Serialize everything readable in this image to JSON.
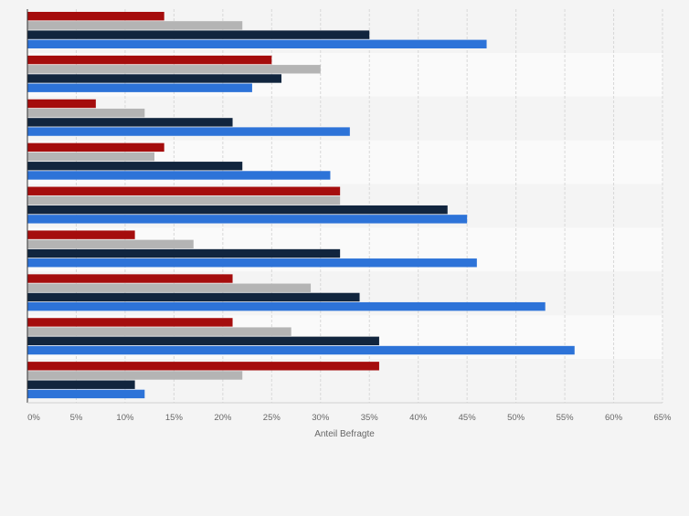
{
  "chart_data": {
    "type": "bar",
    "orientation": "horizontal",
    "title": "",
    "xlabel": "Anteil Befragte",
    "ylabel": "",
    "xlim": [
      0,
      65
    ],
    "x_ticks": [
      "0%",
      "5%",
      "10%",
      "15%",
      "20%",
      "25%",
      "30%",
      "35%",
      "40%",
      "45%",
      "50%",
      "55%",
      "60%",
      "65%"
    ],
    "grid": true,
    "legend": "none",
    "categories": [
      "",
      "",
      "",
      "",
      "",
      "",
      "",
      "",
      ""
    ],
    "series": [
      {
        "color": "#a50d0d",
        "values": [
          14,
          25,
          7,
          14,
          32,
          11,
          21,
          21,
          36
        ]
      },
      {
        "color": "#b4b4b4",
        "values": [
          22,
          30,
          12,
          13,
          32,
          17,
          29,
          27,
          22
        ]
      },
      {
        "color": "#11253e",
        "values": [
          35,
          26,
          21,
          22,
          43,
          32,
          34,
          36,
          11
        ]
      },
      {
        "color": "#2d73d8",
        "values": [
          47,
          23,
          33,
          31,
          45,
          46,
          53,
          56,
          12
        ]
      }
    ]
  }
}
